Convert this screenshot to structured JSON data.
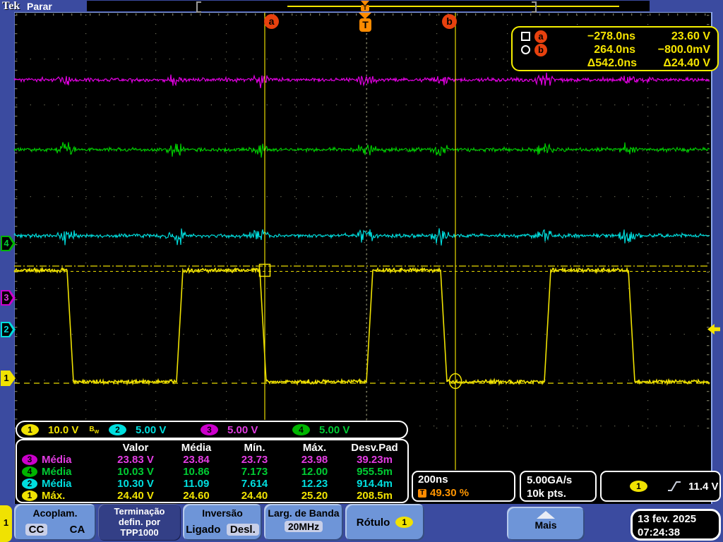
{
  "header": {
    "logo": "Tek",
    "status": "Parar",
    "trigger_marker": "T"
  },
  "cursor_readout": {
    "a_label": "a",
    "b_label": "b",
    "a_time": "−278.0ns",
    "a_volt": "23.60 V",
    "b_time": "264.0ns",
    "b_volt": "−800.0mV",
    "delta_time": "Δ542.0ns",
    "delta_volt": "Δ24.40 V"
  },
  "channels": [
    {
      "num": "1",
      "scale": "10.0 V",
      "color": "#f0e202",
      "bw_b": "B",
      "bw_w": "W"
    },
    {
      "num": "2",
      "scale": "5.00 V",
      "color": "#00dede"
    },
    {
      "num": "3",
      "scale": "5.00 V",
      "color": "#cc00cc"
    },
    {
      "num": "4",
      "scale": "5.00 V",
      "color": "#00b400"
    }
  ],
  "measurements": {
    "headers": [
      "Valor",
      "Média",
      "Mín.",
      "Máx.",
      "Desv.Pad"
    ],
    "rows": [
      {
        "ch": "3",
        "name": "Média",
        "values": [
          "23.83 V",
          "23.84",
          "23.73",
          "23.98",
          "39.23m"
        ]
      },
      {
        "ch": "4",
        "name": "Média",
        "values": [
          "10.03 V",
          "10.86",
          "7.173",
          "12.00",
          "955.5m"
        ]
      },
      {
        "ch": "2",
        "name": "Média",
        "values": [
          "10.30 V",
          "11.09",
          "7.614",
          "12.23",
          "914.4m"
        ]
      },
      {
        "ch": "1",
        "name": "Máx.",
        "values": [
          "24.40 V",
          "24.60",
          "24.40",
          "25.20",
          "208.5m"
        ]
      }
    ]
  },
  "horizontal": {
    "timebase": "200ns",
    "trig_pos": "49.30 %",
    "trig_symbol": "T"
  },
  "acquisition": {
    "rate": "5.00GA/s",
    "points": "10k pts."
  },
  "trigger": {
    "source": "1",
    "level": "11.4 V"
  },
  "menu": {
    "channel_tab": "1",
    "acoplam": {
      "title": "Acoplam.",
      "opt1": "CC",
      "opt2": "CA"
    },
    "term": {
      "line1": "Terminação",
      "line2": "defin. por",
      "line3": "TPP1000"
    },
    "inversao": {
      "title": "Inversão",
      "opt1": "Ligado",
      "opt2": "Desl."
    },
    "larg": {
      "title": "Larg. de Banda",
      "value": "20MHz"
    },
    "rotulo": {
      "title": "Rótulo",
      "badge": "1"
    },
    "mais": "Mais"
  },
  "datetime": {
    "date": "13 fev. 2025",
    "time": "07:24:38"
  },
  "chart_data": {
    "type": "line",
    "title": "Oscilloscope acquisition, 4 channels",
    "x_axis": {
      "timebase": "200ns/div",
      "divisions": 10,
      "trigger_position_pct": 49.3
    },
    "sample_rate": "5.00GA/s",
    "record_length": "10k pts.",
    "series": [
      {
        "name": "CH1",
        "scale": "10.0 V/div",
        "shape": "square",
        "high_v": 24.4,
        "low_v": -0.8,
        "period_ns": 542,
        "duty_pct": 40
      },
      {
        "name": "CH2",
        "scale": "5.00 V/div",
        "shape": "noisy-dc",
        "mean_v": 10.3
      },
      {
        "name": "CH3",
        "scale": "5.00 V/div",
        "shape": "noisy-dc",
        "mean_v": 23.83
      },
      {
        "name": "CH4",
        "scale": "5.00 V/div",
        "shape": "noisy-dc",
        "mean_v": 10.03
      }
    ],
    "cursors": {
      "a": {
        "t": "−278.0ns",
        "v": "23.60 V"
      },
      "b": {
        "t": "264.0ns",
        "v": "−800.0mV"
      },
      "delta_t": "Δ542.0ns",
      "delta_v": "Δ24.40 V"
    }
  },
  "colors": {
    "accent_orange": "#ff8b00",
    "cursor_yellow": "#f5e400",
    "button_blue": "#6e95d8",
    "screen_blue": "#3b4ba0"
  }
}
